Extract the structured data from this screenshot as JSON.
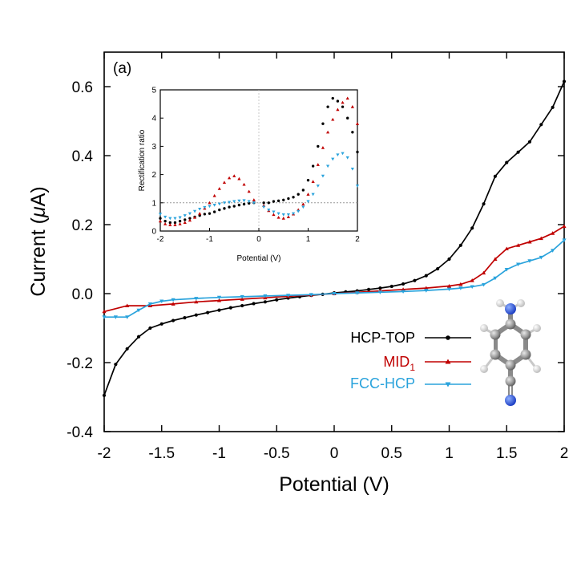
{
  "chart_data": {
    "main": {
      "type": "line",
      "panel_label": "(a)",
      "xlabel": "Potential (V)",
      "ylabel_prefix": "Current (",
      "ylabel_mu": "μ",
      "ylabel_suffix": "A)",
      "xlim": [
        -2,
        2
      ],
      "ylim": [
        -0.4,
        0.7
      ],
      "xticks": [
        -2,
        -1.5,
        -1,
        -0.5,
        0,
        0.5,
        1,
        1.5,
        2
      ],
      "xtick_labels": [
        "-2",
        "-1.5",
        "-1",
        "-0.5",
        "0",
        "0.5",
        "1",
        "1.5",
        "2"
      ],
      "yticks": [
        -0.4,
        -0.2,
        0.0,
        0.2,
        0.4,
        0.6
      ],
      "ytick_labels": [
        "-0.4",
        "-0.2",
        "0.0",
        "0.2",
        "0.4",
        "0.6"
      ],
      "legend_position": "bottom-right",
      "series": [
        {
          "name": "HCP-TOP",
          "color": "#000000",
          "marker": "circle",
          "x": [
            -2.0,
            -1.9,
            -1.8,
            -1.7,
            -1.6,
            -1.5,
            -1.4,
            -1.3,
            -1.2,
            -1.1,
            -1.0,
            -0.9,
            -0.8,
            -0.7,
            -0.6,
            -0.5,
            -0.4,
            -0.3,
            -0.2,
            -0.1,
            0.0,
            0.1,
            0.2,
            0.3,
            0.4,
            0.5,
            0.6,
            0.7,
            0.8,
            0.9,
            1.0,
            1.1,
            1.2,
            1.3,
            1.4,
            1.5,
            1.6,
            1.7,
            1.8,
            1.9,
            2.0
          ],
          "y": [
            -0.295,
            -0.205,
            -0.16,
            -0.125,
            -0.1,
            -0.088,
            -0.078,
            -0.07,
            -0.062,
            -0.055,
            -0.048,
            -0.041,
            -0.035,
            -0.029,
            -0.024,
            -0.018,
            -0.013,
            -0.009,
            -0.005,
            -0.002,
            0.002,
            0.005,
            0.008,
            0.012,
            0.016,
            0.021,
            0.028,
            0.038,
            0.052,
            0.072,
            0.1,
            0.14,
            0.19,
            0.26,
            0.34,
            0.38,
            0.41,
            0.44,
            0.49,
            0.54,
            0.615
          ]
        },
        {
          "name": "MID",
          "subscript": "1",
          "color": "#c00000",
          "marker": "triangle-up",
          "x": [
            -2.0,
            -1.8,
            -1.6,
            -1.4,
            -1.2,
            -1.0,
            -0.8,
            -0.6,
            -0.4,
            -0.2,
            0.0,
            0.2,
            0.4,
            0.6,
            0.8,
            1.0,
            1.1,
            1.2,
            1.3,
            1.4,
            1.5,
            1.6,
            1.7,
            1.8,
            1.9,
            2.0
          ],
          "y": [
            -0.052,
            -0.035,
            -0.035,
            -0.03,
            -0.024,
            -0.02,
            -0.016,
            -0.012,
            -0.008,
            -0.004,
            0.0,
            0.004,
            0.008,
            0.012,
            0.016,
            0.022,
            0.027,
            0.038,
            0.06,
            0.1,
            0.13,
            0.14,
            0.15,
            0.16,
            0.175,
            0.195
          ]
        },
        {
          "name": "FCC-HCP",
          "color": "#2aa3dc",
          "marker": "triangle-down",
          "x": [
            -2.0,
            -1.9,
            -1.8,
            -1.7,
            -1.6,
            -1.5,
            -1.4,
            -1.2,
            -1.0,
            -0.8,
            -0.6,
            -0.4,
            -0.2,
            0.0,
            0.2,
            0.4,
            0.6,
            0.8,
            1.0,
            1.1,
            1.2,
            1.3,
            1.4,
            1.5,
            1.6,
            1.7,
            1.8,
            1.9,
            2.0
          ],
          "y": [
            -0.068,
            -0.068,
            -0.068,
            -0.048,
            -0.03,
            -0.022,
            -0.018,
            -0.014,
            -0.011,
            -0.009,
            -0.007,
            -0.005,
            -0.003,
            0.0,
            0.002,
            0.004,
            0.006,
            0.009,
            0.013,
            0.016,
            0.02,
            0.026,
            0.045,
            0.07,
            0.085,
            0.095,
            0.105,
            0.125,
            0.155
          ]
        }
      ]
    },
    "inset": {
      "type": "scatter",
      "xlabel": "Potential (V)",
      "ylabel": "Rectification ratio",
      "xlim": [
        -2,
        2
      ],
      "ylim": [
        0,
        5
      ],
      "xticks": [
        -2,
        -1,
        0,
        1,
        2
      ],
      "xtick_labels": [
        "-2",
        "-1",
        "0",
        "1",
        "2"
      ],
      "yticks": [
        0,
        1,
        2,
        3,
        4,
        5
      ],
      "ytick_labels": [
        "0",
        "1",
        "2",
        "3",
        "4",
        "5"
      ],
      "reference_line": 1,
      "series": [
        {
          "name": "HCP-TOP",
          "color": "#000000",
          "marker": "circle",
          "x": [
            -2.0,
            -1.9,
            -1.8,
            -1.7,
            -1.6,
            -1.5,
            -1.4,
            -1.3,
            -1.2,
            -1.1,
            -1.0,
            -0.9,
            -0.8,
            -0.7,
            -0.6,
            -0.5,
            -0.4,
            -0.3,
            -0.2,
            -0.1,
            0.1,
            0.2,
            0.3,
            0.4,
            0.5,
            0.6,
            0.7,
            0.8,
            0.9,
            1.0,
            1.1,
            1.2,
            1.3,
            1.4,
            1.5,
            1.6,
            1.7,
            1.8,
            1.9,
            2.0
          ],
          "y": [
            0.45,
            0.35,
            0.3,
            0.3,
            0.35,
            0.4,
            0.45,
            0.5,
            0.55,
            0.6,
            0.62,
            0.68,
            0.75,
            0.8,
            0.85,
            0.88,
            0.92,
            0.95,
            0.98,
            1.0,
            1.0,
            1.0,
            1.05,
            1.07,
            1.1,
            1.15,
            1.2,
            1.3,
            1.45,
            1.8,
            2.3,
            3.0,
            3.8,
            4.4,
            4.7,
            4.6,
            4.4,
            4.0,
            3.5,
            2.8
          ]
        },
        {
          "name": "MID1",
          "color": "#c00000",
          "marker": "triangle-up",
          "x": [
            -2.0,
            -1.9,
            -1.8,
            -1.7,
            -1.6,
            -1.5,
            -1.4,
            -1.3,
            -1.2,
            -1.1,
            -1.0,
            -0.9,
            -0.8,
            -0.7,
            -0.6,
            -0.5,
            -0.4,
            -0.3,
            -0.2,
            -0.1,
            0.1,
            0.2,
            0.3,
            0.4,
            0.5,
            0.6,
            0.7,
            0.8,
            0.9,
            1.0,
            1.1,
            1.2,
            1.3,
            1.4,
            1.5,
            1.6,
            1.7,
            1.8,
            1.9,
            2.0
          ],
          "y": [
            0.35,
            0.25,
            0.22,
            0.22,
            0.25,
            0.3,
            0.38,
            0.48,
            0.62,
            0.8,
            1.0,
            1.25,
            1.5,
            1.72,
            1.88,
            1.95,
            1.85,
            1.65,
            1.4,
            1.1,
            0.9,
            0.72,
            0.58,
            0.48,
            0.45,
            0.5,
            0.6,
            0.75,
            0.95,
            1.3,
            1.75,
            2.35,
            2.95,
            3.5,
            3.95,
            4.3,
            4.55,
            4.7,
            4.4,
            3.8
          ]
        },
        {
          "name": "FCC-HCP",
          "color": "#2aa3dc",
          "marker": "triangle-down",
          "x": [
            -2.0,
            -1.9,
            -1.8,
            -1.7,
            -1.6,
            -1.5,
            -1.4,
            -1.3,
            -1.2,
            -1.1,
            -1.0,
            -0.9,
            -0.8,
            -0.7,
            -0.6,
            -0.5,
            -0.4,
            -0.3,
            -0.2,
            -0.1,
            0.1,
            0.2,
            0.3,
            0.4,
            0.5,
            0.6,
            0.7,
            0.8,
            0.9,
            1.0,
            1.1,
            1.2,
            1.3,
            1.4,
            1.5,
            1.6,
            1.7,
            1.8,
            1.9,
            2.0
          ],
          "y": [
            0.6,
            0.5,
            0.45,
            0.45,
            0.48,
            0.55,
            0.62,
            0.7,
            0.78,
            0.84,
            0.88,
            0.92,
            0.96,
            1.0,
            1.02,
            1.05,
            1.07,
            1.08,
            1.05,
            1.0,
            0.85,
            0.75,
            0.68,
            0.62,
            0.58,
            0.58,
            0.62,
            0.7,
            0.85,
            1.05,
            1.3,
            1.6,
            1.95,
            2.3,
            2.55,
            2.7,
            2.75,
            2.6,
            2.2,
            1.6
          ]
        }
      ]
    }
  }
}
